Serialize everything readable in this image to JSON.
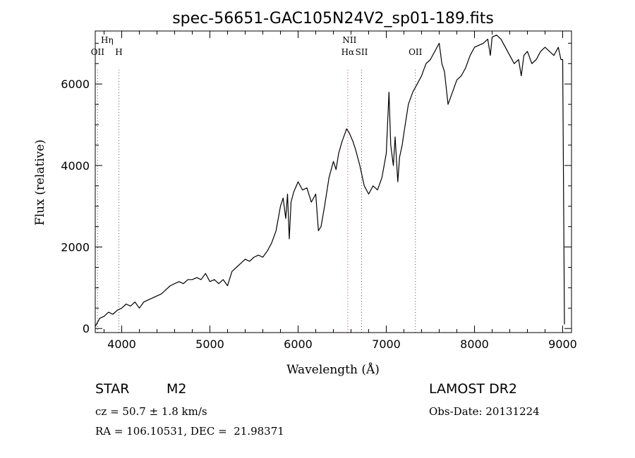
{
  "chart_data": {
    "type": "line",
    "title": "spec-56651-GAC105N24V2_sp01-189.fits",
    "xlabel": "Wavelength (Å)",
    "ylabel": "Flux (relative)",
    "xlim": [
      3700,
      9100
    ],
    "ylim": [
      -100,
      7300
    ],
    "xticks": [
      4000,
      5000,
      6000,
      7000,
      8000,
      9000
    ],
    "yticks": [
      0,
      2000,
      4000,
      6000
    ],
    "grid": false,
    "series": [
      {
        "color": "#000000",
        "x": [
          3700,
          3750,
          3800,
          3850,
          3900,
          3950,
          4000,
          4050,
          4100,
          4150,
          4200,
          4250,
          4300,
          4350,
          4400,
          4450,
          4500,
          4550,
          4600,
          4650,
          4700,
          4750,
          4800,
          4850,
          4900,
          4950,
          5000,
          5050,
          5100,
          5150,
          5200,
          5250,
          5300,
          5350,
          5400,
          5450,
          5500,
          5550,
          5600,
          5650,
          5700,
          5750,
          5800,
          5830,
          5860,
          5880,
          5900,
          5920,
          5950,
          6000,
          6050,
          6100,
          6150,
          6200,
          6230,
          6260,
          6300,
          6350,
          6400,
          6430,
          6460,
          6500,
          6550,
          6580,
          6620,
          6650,
          6700,
          6750,
          6800,
          6850,
          6900,
          6950,
          7000,
          7030,
          7050,
          7080,
          7100,
          7130,
          7150,
          7180,
          7200,
          7250,
          7300,
          7350,
          7400,
          7450,
          7500,
          7550,
          7600,
          7630,
          7660,
          7700,
          7750,
          7800,
          7850,
          7900,
          7950,
          8000,
          8050,
          8100,
          8150,
          8180,
          8200,
          8250,
          8300,
          8350,
          8400,
          8450,
          8500,
          8530,
          8560,
          8600,
          8650,
          8700,
          8750,
          8800,
          8850,
          8900,
          8950,
          8980,
          9000,
          9020
        ],
        "y": [
          50,
          250,
          300,
          400,
          350,
          450,
          500,
          600,
          550,
          650,
          500,
          650,
          700,
          750,
          800,
          850,
          950,
          1050,
          1100,
          1150,
          1100,
          1200,
          1200,
          1250,
          1200,
          1350,
          1150,
          1200,
          1100,
          1200,
          1050,
          1400,
          1500,
          1600,
          1700,
          1650,
          1750,
          1800,
          1750,
          1900,
          2100,
          2400,
          3000,
          3200,
          2700,
          3300,
          2200,
          3100,
          3350,
          3600,
          3400,
          3450,
          3100,
          3300,
          2400,
          2500,
          3000,
          3700,
          4100,
          3900,
          4300,
          4600,
          4900,
          4800,
          4600,
          4400,
          4000,
          3500,
          3300,
          3500,
          3400,
          3700,
          4300,
          5800,
          4500,
          4000,
          4700,
          3600,
          4200,
          4500,
          4800,
          5500,
          5800,
          6000,
          6200,
          6500,
          6600,
          6800,
          7000,
          6500,
          6300,
          5500,
          5800,
          6100,
          6200,
          6400,
          6700,
          6900,
          6950,
          7000,
          7100,
          6700,
          7150,
          7200,
          7100,
          6900,
          6700,
          6500,
          6600,
          6200,
          6700,
          6800,
          6500,
          6600,
          6800,
          6900,
          6800,
          6700,
          6900,
          6600,
          6600,
          100
        ]
      }
    ],
    "annotations": [
      {
        "label": "Hη",
        "x": 3835,
        "tier": 1
      },
      {
        "label": "OII",
        "x": 3727,
        "tier": 2
      },
      {
        "label": "H",
        "x": 3968,
        "tier": 2
      },
      {
        "label": "NII",
        "x": 6583,
        "tier": 1
      },
      {
        "label": "Hα",
        "x": 6563,
        "tier": 2
      },
      {
        "label": "OII",
        "x": 7330,
        "tier": 2
      },
      {
        "label": "SII",
        "x": 6720,
        "tier": 2
      }
    ]
  },
  "info": {
    "object_type": "STAR",
    "subclass": "M2",
    "survey": "LAMOST DR2",
    "redshift": "cz = 50.7 ± 1.8 km/s",
    "obs_date": "Obs-Date: 20131224",
    "coords": "RA = 106.10531, DEC =  21.98371"
  }
}
